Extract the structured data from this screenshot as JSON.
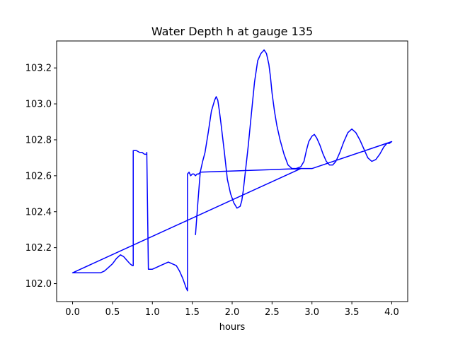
{
  "chart_data": {
    "type": "line",
    "title": "Water Depth h at gauge 135",
    "xlabel": "hours",
    "ylabel": "",
    "xlim": [
      -0.2,
      4.2
    ],
    "ylim": [
      101.9,
      103.35
    ],
    "xticks": [
      0.0,
      0.5,
      1.0,
      1.5,
      2.0,
      2.5,
      3.0,
      3.5,
      4.0
    ],
    "xtick_labels": [
      "0.0",
      "0.5",
      "1.0",
      "1.5",
      "2.0",
      "2.5",
      "3.0",
      "3.5",
      "4.0"
    ],
    "yticks": [
      102.0,
      102.2,
      102.4,
      102.6,
      102.8,
      103.0,
      103.2
    ],
    "ytick_labels": [
      "102.0",
      "102.2",
      "102.4",
      "102.6",
      "102.8",
      "103.0",
      "103.2"
    ],
    "grid": false,
    "legend": "none",
    "series": [
      {
        "color": "#0000ff",
        "x": [
          1.54,
          1.57,
          1.6,
          1.63,
          1.66,
          1.7,
          1.74,
          1.78,
          1.8,
          1.82,
          1.84,
          1.86,
          1.9,
          1.94,
          1.98,
          2.02,
          2.06,
          2.1,
          2.12,
          2.14,
          2.16,
          2.2,
          2.24,
          2.28,
          2.32,
          2.36,
          2.4,
          2.43,
          2.46,
          2.48,
          2.5,
          2.53,
          2.56,
          2.6,
          2.65,
          2.7,
          2.75,
          2.8,
          2.86,
          2.9,
          2.93,
          2.96,
          3.0,
          3.03,
          3.06,
          3.1,
          3.14,
          3.18,
          3.22,
          3.26,
          3.3,
          3.35,
          3.4,
          3.45,
          3.5,
          3.55,
          3.6,
          3.65,
          3.7,
          3.75,
          3.8,
          3.85,
          3.9,
          3.94,
          3.97,
          4.0,
          3.0,
          2.86,
          1.6,
          1.58,
          1.56,
          1.54,
          1.52,
          1.5,
          1.48,
          1.46,
          1.44,
          1.44,
          1.42,
          1.38,
          1.34,
          1.3,
          1.25,
          1.2,
          1.15,
          1.1,
          1.05,
          1.0,
          0.95,
          0.93,
          0.93,
          0.9,
          0.87,
          0.84,
          0.8,
          0.76,
          0.76,
          0.75,
          0.72,
          0.68,
          0.64,
          0.6,
          0.55,
          0.5,
          0.45,
          0.4,
          0.35,
          0.3,
          0.2,
          0.1,
          0.0,
          2.86
        ],
        "y": [
          102.27,
          102.45,
          102.62,
          102.68,
          102.73,
          102.84,
          102.96,
          103.02,
          103.04,
          103.02,
          102.96,
          102.89,
          102.74,
          102.58,
          102.5,
          102.45,
          102.42,
          102.43,
          102.46,
          102.52,
          102.6,
          102.76,
          102.94,
          103.12,
          103.24,
          103.28,
          103.3,
          103.28,
          103.22,
          103.15,
          103.06,
          102.96,
          102.88,
          102.8,
          102.72,
          102.66,
          102.64,
          102.64,
          102.65,
          102.68,
          102.74,
          102.79,
          102.82,
          102.83,
          102.81,
          102.77,
          102.72,
          102.68,
          102.66,
          102.66,
          102.68,
          102.73,
          102.79,
          102.84,
          102.86,
          102.84,
          102.8,
          102.75,
          102.7,
          102.68,
          102.69,
          102.72,
          102.76,
          102.78,
          102.78,
          102.79,
          102.64,
          102.64,
          102.62,
          102.61,
          102.61,
          102.6,
          102.61,
          102.61,
          102.6,
          102.62,
          102.61,
          101.96,
          101.98,
          102.03,
          102.07,
          102.1,
          102.11,
          102.12,
          102.11,
          102.1,
          102.09,
          102.08,
          102.08,
          102.73,
          102.72,
          102.72,
          102.73,
          102.73,
          102.74,
          102.74,
          102.1,
          102.1,
          102.11,
          102.13,
          102.15,
          102.16,
          102.14,
          102.11,
          102.09,
          102.07,
          102.06,
          102.06,
          102.06,
          102.06,
          102.06,
          102.64
        ]
      }
    ]
  }
}
